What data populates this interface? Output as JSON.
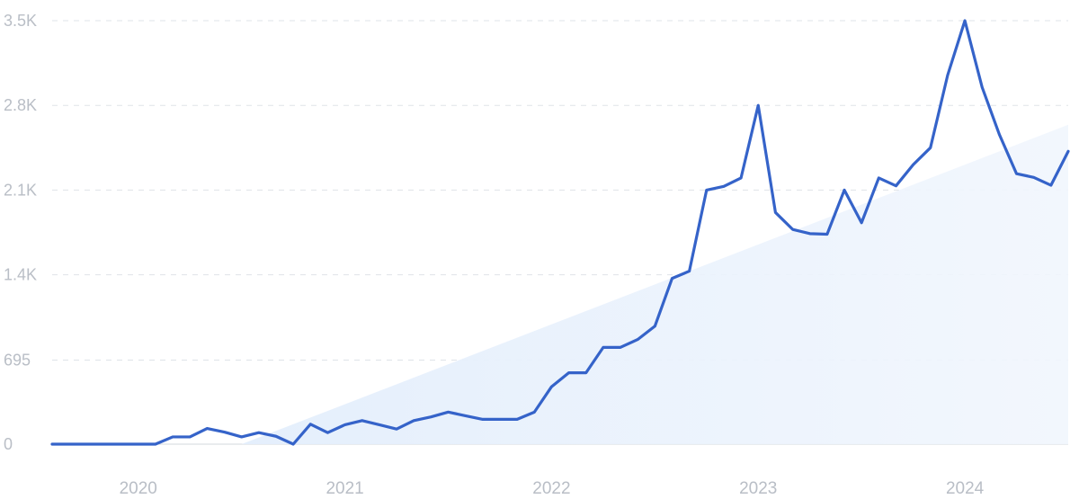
{
  "chart_data": {
    "type": "line",
    "title": "",
    "xlabel": "",
    "ylabel": "",
    "ylim": [
      0,
      3500
    ],
    "xlim": [
      "2019-08",
      "2024-07"
    ],
    "grid": true,
    "legend": "none",
    "yticks": [
      {
        "value": 0,
        "label": "0"
      },
      {
        "value": 695,
        "label": "695"
      },
      {
        "value": 1400,
        "label": "1.4K"
      },
      {
        "value": 2100,
        "label": "2.1K"
      },
      {
        "value": 2800,
        "label": "2.8K"
      },
      {
        "value": 3500,
        "label": "3.5K"
      }
    ],
    "xticks": [
      {
        "value": "2020-01",
        "label": "2020"
      },
      {
        "value": "2021-01",
        "label": "2021"
      },
      {
        "value": "2022-01",
        "label": "2022"
      },
      {
        "value": "2023-01",
        "label": "2023"
      },
      {
        "value": "2024-01",
        "label": "2024"
      }
    ],
    "series": [
      {
        "color": "#3563c9",
        "x": [
          "2019-08",
          "2019-09",
          "2019-10",
          "2019-11",
          "2019-12",
          "2020-01",
          "2020-02",
          "2020-03",
          "2020-04",
          "2020-05",
          "2020-06",
          "2020-07",
          "2020-08",
          "2020-09",
          "2020-10",
          "2020-11",
          "2020-12",
          "2021-01",
          "2021-02",
          "2021-03",
          "2021-04",
          "2021-05",
          "2021-06",
          "2021-07",
          "2021-08",
          "2021-09",
          "2021-10",
          "2021-11",
          "2021-12",
          "2022-01",
          "2022-02",
          "2022-03",
          "2022-04",
          "2022-05",
          "2022-06",
          "2022-07",
          "2022-08",
          "2022-09",
          "2022-10",
          "2022-11",
          "2022-12",
          "2023-01",
          "2023-02",
          "2023-03",
          "2023-04",
          "2023-05",
          "2023-06",
          "2023-07",
          "2023-08",
          "2023-09",
          "2023-10",
          "2023-11",
          "2023-12",
          "2024-01",
          "2024-02",
          "2024-03",
          "2024-04",
          "2024-05",
          "2024-06",
          "2024-07"
        ],
        "values": [
          0,
          0,
          0,
          0,
          0,
          0,
          0,
          60,
          60,
          130,
          100,
          60,
          95,
          65,
          0,
          165,
          95,
          160,
          195,
          160,
          125,
          195,
          225,
          265,
          235,
          205,
          205,
          205,
          265,
          475,
          590,
          590,
          800,
          800,
          865,
          975,
          1370,
          1430,
          2100,
          2130,
          2200,
          2800,
          1915,
          1775,
          1740,
          1735,
          2100,
          1830,
          2200,
          2135,
          2310,
          2450,
          3050,
          3500,
          2950,
          2560,
          2235,
          2205,
          2140,
          2420
        ]
      }
    ],
    "trend": {
      "color": "#dce9fb",
      "x": [
        "2020-07",
        "2024-07"
      ],
      "values": [
        0,
        2640
      ]
    }
  }
}
